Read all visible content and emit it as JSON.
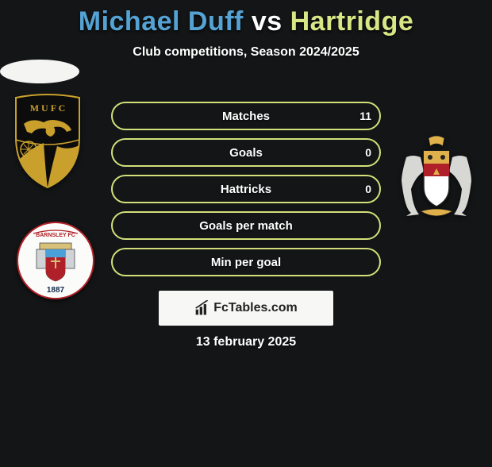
{
  "title_left": "Michael Duff",
  "title_vs": "vs",
  "title_right": "Hartridge",
  "title_color_left": "#55a3d4",
  "title_color_right": "#d8e685",
  "subtitle": "Club competitions, Season 2024/2025",
  "stats": [
    {
      "label": "Matches",
      "value_left": "11",
      "show_left": true
    },
    {
      "label": "Goals",
      "value_left": "0",
      "show_left": true
    },
    {
      "label": "Hattricks",
      "value_left": "0",
      "show_left": true
    },
    {
      "label": "Goals per match",
      "value_left": "",
      "show_left": false
    },
    {
      "label": "Min per goal",
      "value_left": "",
      "show_left": false
    }
  ],
  "row_border_color": "#d3e07a",
  "row_text_color": "#ffffff",
  "attribution": "FcTables.com",
  "date": "13 february 2025",
  "background_color": "#131516"
}
